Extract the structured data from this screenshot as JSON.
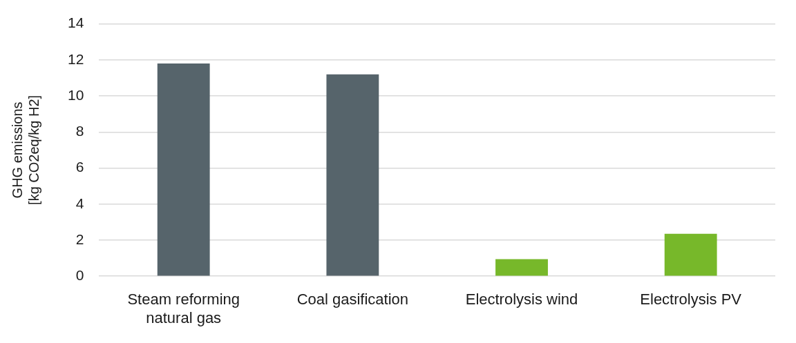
{
  "chart_data": {
    "type": "bar",
    "categories": [
      [
        "Steam reforming",
        "natural gas"
      ],
      "Coal gasification",
      "Electrolysis wind",
      "Electrolysis PV"
    ],
    "values": [
      11.8,
      11.2,
      0.95,
      2.35
    ],
    "colors": [
      "#56646b",
      "#56646b",
      "#77b82a",
      "#77b82a"
    ],
    "y_label": [
      "GHG emissions",
      "[kg CO2eq/kg H2]"
    ],
    "ylim": [
      0,
      14
    ],
    "yticks": [
      0,
      2,
      4,
      6,
      8,
      10,
      12,
      14
    ],
    "grid": true
  }
}
